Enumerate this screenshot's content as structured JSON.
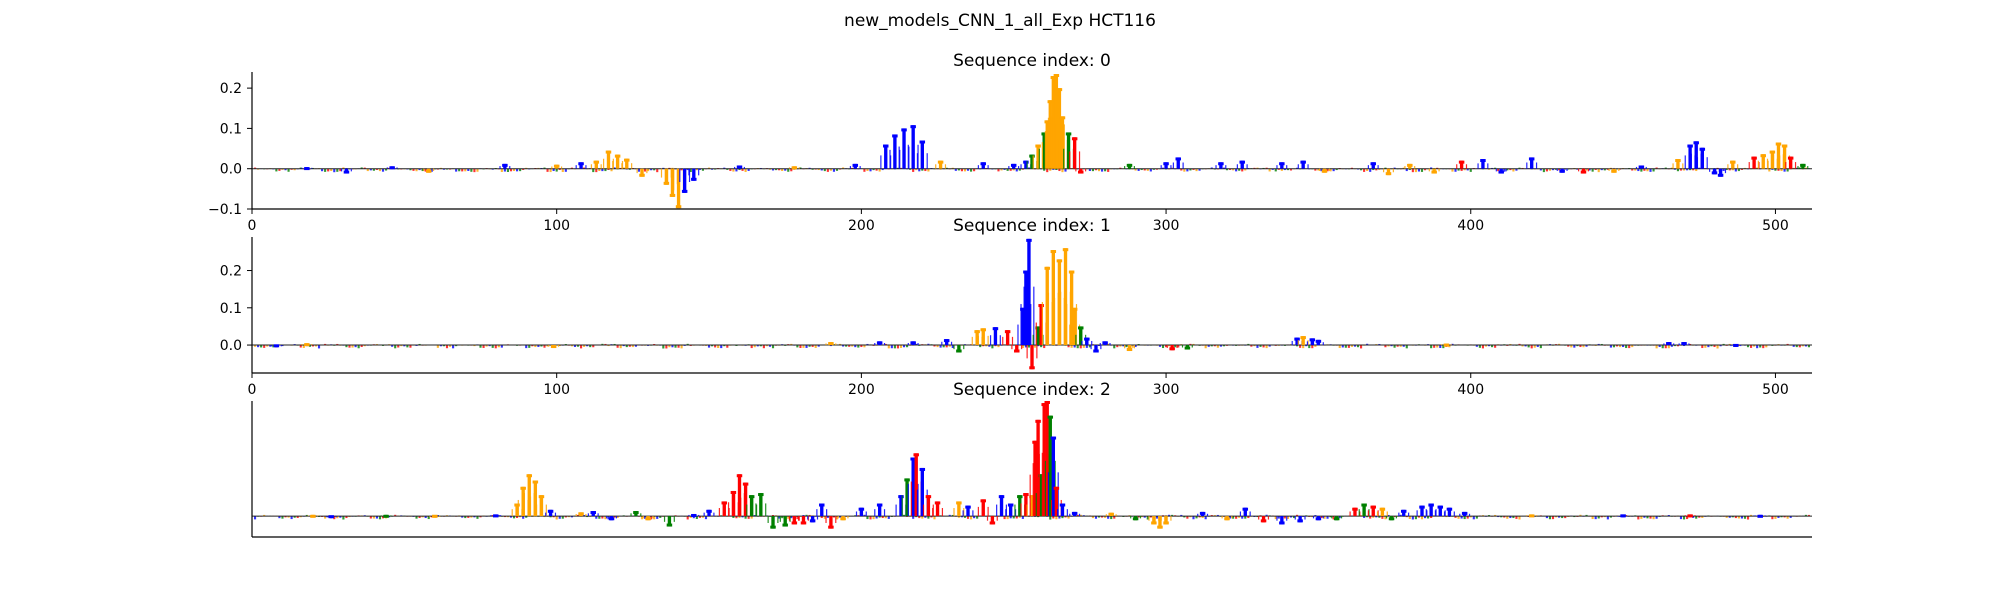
{
  "figure": {
    "suptitle": "new_models_CNN_1_all_Exp HCT116"
  },
  "colors": {
    "A": "#008000",
    "C": "#0000ff",
    "G": "#ffa500",
    "T": "#ff0000",
    "axis": "#000000"
  },
  "chart_data": [
    {
      "type": "sequence-logo",
      "title": "Sequence index: 0",
      "xlabel": "",
      "ylabel": "",
      "xlim": [
        0,
        512
      ],
      "ylim": [
        -0.1,
        0.24
      ],
      "xticks": [
        0,
        100,
        200,
        300,
        400,
        500
      ],
      "yticks": [
        -0.1,
        0.0,
        0.1,
        0.2
      ],
      "ytick_labels": [
        "−0.1",
        "0.0",
        "0.1",
        "0.2"
      ],
      "peaks": [
        {
          "x": 18,
          "h": 0.004,
          "base": "C"
        },
        {
          "x": 31,
          "h": -0.012,
          "base": "C"
        },
        {
          "x": 46,
          "h": 0.006,
          "base": "C"
        },
        {
          "x": 58,
          "h": -0.01,
          "base": "G"
        },
        {
          "x": 83,
          "h": 0.012,
          "base": "C"
        },
        {
          "x": 100,
          "h": 0.01,
          "base": "G"
        },
        {
          "x": 108,
          "h": 0.016,
          "base": "C"
        },
        {
          "x": 113,
          "h": 0.02,
          "base": "G"
        },
        {
          "x": 117,
          "h": 0.045,
          "base": "G"
        },
        {
          "x": 120,
          "h": 0.035,
          "base": "G"
        },
        {
          "x": 123,
          "h": 0.025,
          "base": "G"
        },
        {
          "x": 128,
          "h": -0.02,
          "base": "G"
        },
        {
          "x": 136,
          "h": -0.04,
          "base": "G"
        },
        {
          "x": 138,
          "h": -0.07,
          "base": "G"
        },
        {
          "x": 140,
          "h": -0.098,
          "base": "G"
        },
        {
          "x": 142,
          "h": -0.06,
          "base": "C"
        },
        {
          "x": 145,
          "h": -0.03,
          "base": "C"
        },
        {
          "x": 160,
          "h": 0.008,
          "base": "C"
        },
        {
          "x": 178,
          "h": 0.006,
          "base": "G"
        },
        {
          "x": 198,
          "h": 0.012,
          "base": "C"
        },
        {
          "x": 208,
          "h": 0.06,
          "base": "C"
        },
        {
          "x": 211,
          "h": 0.085,
          "base": "C"
        },
        {
          "x": 214,
          "h": 0.1,
          "base": "C"
        },
        {
          "x": 217,
          "h": 0.108,
          "base": "C"
        },
        {
          "x": 220,
          "h": 0.07,
          "base": "C"
        },
        {
          "x": 226,
          "h": 0.02,
          "base": "G"
        },
        {
          "x": 240,
          "h": 0.016,
          "base": "C"
        },
        {
          "x": 250,
          "h": 0.012,
          "base": "C"
        },
        {
          "x": 254,
          "h": 0.02,
          "base": "C"
        },
        {
          "x": 256,
          "h": 0.035,
          "base": "A"
        },
        {
          "x": 258,
          "h": 0.06,
          "base": "G"
        },
        {
          "x": 260,
          "h": 0.09,
          "base": "A"
        },
        {
          "x": 261,
          "h": 0.12,
          "base": "G"
        },
        {
          "x": 262,
          "h": 0.17,
          "base": "G"
        },
        {
          "x": 263,
          "h": 0.23,
          "base": "G"
        },
        {
          "x": 264,
          "h": 0.235,
          "base": "G"
        },
        {
          "x": 265,
          "h": 0.2,
          "base": "G"
        },
        {
          "x": 266,
          "h": 0.13,
          "base": "G"
        },
        {
          "x": 268,
          "h": 0.09,
          "base": "A"
        },
        {
          "x": 270,
          "h": 0.078,
          "base": "T"
        },
        {
          "x": 272,
          "h": -0.012,
          "base": "T"
        },
        {
          "x": 288,
          "h": 0.012,
          "base": "A"
        },
        {
          "x": 300,
          "h": 0.016,
          "base": "C"
        },
        {
          "x": 304,
          "h": 0.028,
          "base": "C"
        },
        {
          "x": 318,
          "h": 0.016,
          "base": "C"
        },
        {
          "x": 325,
          "h": 0.02,
          "base": "C"
        },
        {
          "x": 338,
          "h": 0.016,
          "base": "C"
        },
        {
          "x": 345,
          "h": 0.02,
          "base": "C"
        },
        {
          "x": 352,
          "h": -0.01,
          "base": "G"
        },
        {
          "x": 368,
          "h": 0.016,
          "base": "C"
        },
        {
          "x": 373,
          "h": -0.016,
          "base": "G"
        },
        {
          "x": 380,
          "h": 0.012,
          "base": "G"
        },
        {
          "x": 388,
          "h": -0.012,
          "base": "G"
        },
        {
          "x": 397,
          "h": 0.02,
          "base": "T"
        },
        {
          "x": 404,
          "h": 0.024,
          "base": "C"
        },
        {
          "x": 410,
          "h": -0.012,
          "base": "C"
        },
        {
          "x": 420,
          "h": 0.028,
          "base": "C"
        },
        {
          "x": 430,
          "h": -0.01,
          "base": "C"
        },
        {
          "x": 437,
          "h": -0.012,
          "base": "T"
        },
        {
          "x": 447,
          "h": -0.01,
          "base": "G"
        },
        {
          "x": 456,
          "h": 0.008,
          "base": "C"
        },
        {
          "x": 468,
          "h": 0.024,
          "base": "G"
        },
        {
          "x": 472,
          "h": 0.06,
          "base": "C"
        },
        {
          "x": 474,
          "h": 0.068,
          "base": "C"
        },
        {
          "x": 476,
          "h": 0.052,
          "base": "C"
        },
        {
          "x": 480,
          "h": -0.014,
          "base": "C"
        },
        {
          "x": 482,
          "h": -0.02,
          "base": "C"
        },
        {
          "x": 486,
          "h": 0.02,
          "base": "G"
        },
        {
          "x": 493,
          "h": 0.03,
          "base": "T"
        },
        {
          "x": 496,
          "h": 0.036,
          "base": "G"
        },
        {
          "x": 499,
          "h": 0.045,
          "base": "G"
        },
        {
          "x": 501,
          "h": 0.065,
          "base": "G"
        },
        {
          "x": 503,
          "h": 0.06,
          "base": "G"
        },
        {
          "x": 505,
          "h": 0.03,
          "base": "T"
        },
        {
          "x": 509,
          "h": 0.012,
          "base": "A"
        }
      ]
    },
    {
      "type": "sequence-logo",
      "title": "Sequence index: 1",
      "xlabel": "",
      "ylabel": "",
      "xlim": [
        0,
        512
      ],
      "ylim": [
        -0.075,
        0.29
      ],
      "xticks": [
        0,
        100,
        200,
        300,
        400,
        500
      ],
      "yticks": [
        0.0,
        0.1,
        0.2
      ],
      "ytick_labels": [
        "0.0",
        "0.1",
        "0.2"
      ],
      "peaks": [
        {
          "x": 8,
          "h": -0.006,
          "base": "C"
        },
        {
          "x": 18,
          "h": 0.005,
          "base": "G"
        },
        {
          "x": 99,
          "h": -0.008,
          "base": "G"
        },
        {
          "x": 190,
          "h": 0.008,
          "base": "G"
        },
        {
          "x": 206,
          "h": 0.01,
          "base": "C"
        },
        {
          "x": 217,
          "h": 0.01,
          "base": "C"
        },
        {
          "x": 228,
          "h": 0.016,
          "base": "C"
        },
        {
          "x": 232,
          "h": -0.02,
          "base": "A"
        },
        {
          "x": 238,
          "h": 0.04,
          "base": "G"
        },
        {
          "x": 240,
          "h": 0.045,
          "base": "G"
        },
        {
          "x": 244,
          "h": 0.048,
          "base": "C"
        },
        {
          "x": 248,
          "h": 0.04,
          "base": "T"
        },
        {
          "x": 251,
          "h": -0.02,
          "base": "T"
        },
        {
          "x": 253,
          "h": 0.1,
          "base": "C"
        },
        {
          "x": 254,
          "h": 0.2,
          "base": "C"
        },
        {
          "x": 255,
          "h": 0.285,
          "base": "C"
        },
        {
          "x": 256,
          "h": -0.065,
          "base": "T"
        },
        {
          "x": 258,
          "h": 0.05,
          "base": "A"
        },
        {
          "x": 259,
          "h": 0.11,
          "base": "T"
        },
        {
          "x": 261,
          "h": 0.21,
          "base": "G"
        },
        {
          "x": 263,
          "h": 0.255,
          "base": "G"
        },
        {
          "x": 265,
          "h": 0.23,
          "base": "G"
        },
        {
          "x": 267,
          "h": 0.26,
          "base": "G"
        },
        {
          "x": 269,
          "h": 0.2,
          "base": "G"
        },
        {
          "x": 270,
          "h": 0.1,
          "base": "G"
        },
        {
          "x": 272,
          "h": 0.05,
          "base": "A"
        },
        {
          "x": 274,
          "h": 0.02,
          "base": "C"
        },
        {
          "x": 277,
          "h": -0.02,
          "base": "C"
        },
        {
          "x": 280,
          "h": 0.01,
          "base": "C"
        },
        {
          "x": 288,
          "h": -0.016,
          "base": "G"
        },
        {
          "x": 302,
          "h": -0.014,
          "base": "T"
        },
        {
          "x": 307,
          "h": -0.012,
          "base": "A"
        },
        {
          "x": 343,
          "h": 0.02,
          "base": "C"
        },
        {
          "x": 345,
          "h": 0.024,
          "base": "G"
        },
        {
          "x": 348,
          "h": 0.018,
          "base": "C"
        },
        {
          "x": 350,
          "h": 0.014,
          "base": "C"
        },
        {
          "x": 392,
          "h": 0.004,
          "base": "G"
        },
        {
          "x": 465,
          "h": 0.008,
          "base": "C"
        },
        {
          "x": 470,
          "h": 0.008,
          "base": "C"
        },
        {
          "x": 487,
          "h": -0.005,
          "base": "C"
        }
      ]
    },
    {
      "type": "sequence-logo",
      "title": "Sequence index: 2",
      "xlabel": "",
      "ylabel": "",
      "xlim": [
        0,
        512
      ],
      "ylim": [
        -0.1,
        0.55
      ],
      "xticks": [],
      "yticks": [],
      "ytick_labels": [],
      "peaks": [
        {
          "x": 20,
          "h": 0.006,
          "base": "G"
        },
        {
          "x": 26,
          "h": -0.01,
          "base": "C"
        },
        {
          "x": 44,
          "h": 0.006,
          "base": "A"
        },
        {
          "x": 60,
          "h": -0.008,
          "base": "G"
        },
        {
          "x": 80,
          "h": 0.008,
          "base": "C"
        },
        {
          "x": 87,
          "h": 0.06,
          "base": "G"
        },
        {
          "x": 89,
          "h": 0.14,
          "base": "G"
        },
        {
          "x": 91,
          "h": 0.2,
          "base": "G"
        },
        {
          "x": 93,
          "h": 0.17,
          "base": "G"
        },
        {
          "x": 95,
          "h": 0.1,
          "base": "G"
        },
        {
          "x": 98,
          "h": 0.03,
          "base": "C"
        },
        {
          "x": 108,
          "h": 0.018,
          "base": "G"
        },
        {
          "x": 112,
          "h": 0.024,
          "base": "C"
        },
        {
          "x": 118,
          "h": -0.02,
          "base": "C"
        },
        {
          "x": 126,
          "h": 0.024,
          "base": "A"
        },
        {
          "x": 130,
          "h": -0.02,
          "base": "G"
        },
        {
          "x": 137,
          "h": -0.05,
          "base": "A"
        },
        {
          "x": 145,
          "h": 0.01,
          "base": "C"
        },
        {
          "x": 150,
          "h": 0.03,
          "base": "C"
        },
        {
          "x": 155,
          "h": 0.07,
          "base": "T"
        },
        {
          "x": 158,
          "h": 0.12,
          "base": "T"
        },
        {
          "x": 160,
          "h": 0.2,
          "base": "T"
        },
        {
          "x": 162,
          "h": 0.16,
          "base": "T"
        },
        {
          "x": 164,
          "h": 0.1,
          "base": "A"
        },
        {
          "x": 167,
          "h": 0.11,
          "base": "A"
        },
        {
          "x": 171,
          "h": -0.06,
          "base": "A"
        },
        {
          "x": 175,
          "h": -0.05,
          "base": "A"
        },
        {
          "x": 178,
          "h": -0.04,
          "base": "T"
        },
        {
          "x": 181,
          "h": -0.04,
          "base": "T"
        },
        {
          "x": 184,
          "h": -0.03,
          "base": "C"
        },
        {
          "x": 187,
          "h": 0.06,
          "base": "C"
        },
        {
          "x": 190,
          "h": -0.06,
          "base": "T"
        },
        {
          "x": 194,
          "h": -0.02,
          "base": "G"
        },
        {
          "x": 200,
          "h": 0.04,
          "base": "C"
        },
        {
          "x": 206,
          "h": 0.06,
          "base": "C"
        },
        {
          "x": 213,
          "h": 0.1,
          "base": "C"
        },
        {
          "x": 215,
          "h": 0.18,
          "base": "A"
        },
        {
          "x": 217,
          "h": 0.28,
          "base": "C"
        },
        {
          "x": 218,
          "h": 0.3,
          "base": "T"
        },
        {
          "x": 220,
          "h": 0.23,
          "base": "C"
        },
        {
          "x": 222,
          "h": 0.1,
          "base": "T"
        },
        {
          "x": 225,
          "h": 0.07,
          "base": "T"
        },
        {
          "x": 232,
          "h": 0.07,
          "base": "G"
        },
        {
          "x": 235,
          "h": 0.05,
          "base": "C"
        },
        {
          "x": 240,
          "h": 0.08,
          "base": "T"
        },
        {
          "x": 243,
          "h": -0.04,
          "base": "T"
        },
        {
          "x": 246,
          "h": 0.1,
          "base": "C"
        },
        {
          "x": 249,
          "h": 0.06,
          "base": "C"
        },
        {
          "x": 252,
          "h": 0.1,
          "base": "A"
        },
        {
          "x": 254,
          "h": 0.11,
          "base": "T"
        },
        {
          "x": 256,
          "h": 0.1,
          "base": "G"
        },
        {
          "x": 257,
          "h": 0.36,
          "base": "T"
        },
        {
          "x": 258,
          "h": 0.46,
          "base": "T"
        },
        {
          "x": 259,
          "h": 0.2,
          "base": "A"
        },
        {
          "x": 260,
          "h": 0.54,
          "base": "T"
        },
        {
          "x": 261,
          "h": 0.55,
          "base": "T"
        },
        {
          "x": 262,
          "h": 0.48,
          "base": "A"
        },
        {
          "x": 263,
          "h": 0.38,
          "base": "C"
        },
        {
          "x": 264,
          "h": 0.14,
          "base": "T"
        },
        {
          "x": 266,
          "h": 0.06,
          "base": "C"
        },
        {
          "x": 270,
          "h": 0.02,
          "base": "C"
        },
        {
          "x": 282,
          "h": 0.016,
          "base": "G"
        },
        {
          "x": 290,
          "h": -0.02,
          "base": "A"
        },
        {
          "x": 296,
          "h": -0.04,
          "base": "G"
        },
        {
          "x": 298,
          "h": -0.06,
          "base": "G"
        },
        {
          "x": 300,
          "h": -0.04,
          "base": "G"
        },
        {
          "x": 312,
          "h": 0.02,
          "base": "C"
        },
        {
          "x": 320,
          "h": -0.02,
          "base": "G"
        },
        {
          "x": 326,
          "h": 0.04,
          "base": "C"
        },
        {
          "x": 332,
          "h": -0.03,
          "base": "T"
        },
        {
          "x": 338,
          "h": -0.04,
          "base": "C"
        },
        {
          "x": 344,
          "h": -0.03,
          "base": "C"
        },
        {
          "x": 350,
          "h": -0.02,
          "base": "C"
        },
        {
          "x": 356,
          "h": -0.02,
          "base": "A"
        },
        {
          "x": 362,
          "h": 0.04,
          "base": "T"
        },
        {
          "x": 365,
          "h": 0.06,
          "base": "A"
        },
        {
          "x": 368,
          "h": 0.05,
          "base": "T"
        },
        {
          "x": 371,
          "h": 0.04,
          "base": "G"
        },
        {
          "x": 374,
          "h": -0.02,
          "base": "A"
        },
        {
          "x": 378,
          "h": 0.03,
          "base": "C"
        },
        {
          "x": 384,
          "h": 0.05,
          "base": "C"
        },
        {
          "x": 387,
          "h": 0.06,
          "base": "C"
        },
        {
          "x": 390,
          "h": 0.05,
          "base": "C"
        },
        {
          "x": 393,
          "h": 0.04,
          "base": "C"
        },
        {
          "x": 398,
          "h": 0.02,
          "base": "C"
        },
        {
          "x": 420,
          "h": 0.008,
          "base": "G"
        },
        {
          "x": 450,
          "h": -0.006,
          "base": "C"
        },
        {
          "x": 472,
          "h": 0.008,
          "base": "T"
        },
        {
          "x": 495,
          "h": 0.006,
          "base": "C"
        }
      ]
    }
  ]
}
